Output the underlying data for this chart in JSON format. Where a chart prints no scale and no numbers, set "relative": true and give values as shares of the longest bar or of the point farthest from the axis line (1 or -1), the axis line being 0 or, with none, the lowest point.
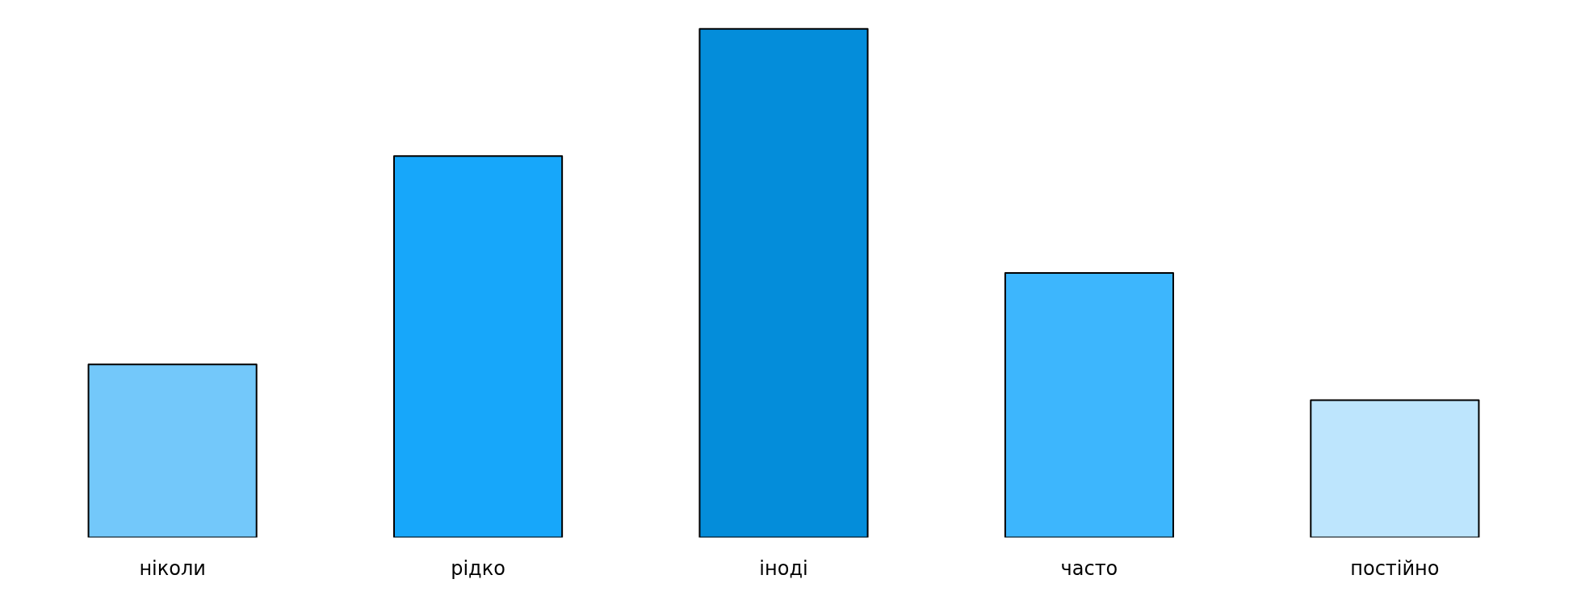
{
  "chart_data": {
    "type": "bar",
    "relative": true,
    "categories": [
      "ніколи",
      "рідко",
      "іноді",
      "часто",
      "постійно"
    ],
    "values": [
      0.34,
      0.75,
      1,
      0.52,
      0.27
    ],
    "colors": [
      "#73c8fa",
      "#17a7fa",
      "#048dda",
      "#3db6fd",
      "#bde5fd"
    ],
    "grid": false
  }
}
